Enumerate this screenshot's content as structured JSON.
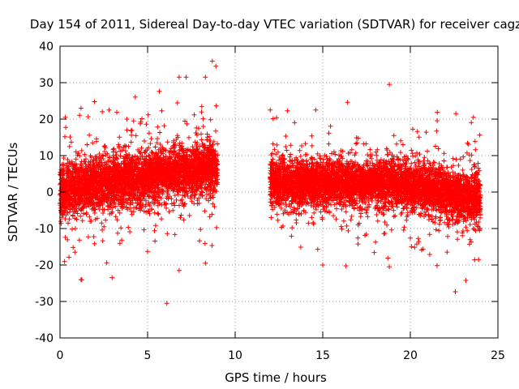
{
  "chart_data": {
    "type": "scatter",
    "title": "Day 154 of 2011, Sidereal Day-to-day VTEC variation (SDTVAR) for receiver cagz",
    "xlabel": "GPS time / hours",
    "ylabel": "SDTVAR / TECUs",
    "xlim": [
      0,
      25
    ],
    "ylim": [
      -40,
      40
    ],
    "xticks": [
      0,
      5,
      10,
      15,
      20,
      25
    ],
    "yticks": [
      -40,
      -30,
      -20,
      -10,
      0,
      10,
      20,
      30,
      40
    ],
    "grid": true,
    "marker": "+",
    "color": "#ff0000",
    "data_gap_hours": [
      9.0,
      12.0
    ],
    "series": [
      {
        "name": "SDTVAR",
        "segments": [
          {
            "x_start": 0.0,
            "x_end": 9.0,
            "mean_start": 0.5,
            "mean_end": 7.0,
            "typical_spread": 3.5
          },
          {
            "x_start": 12.0,
            "x_end": 18.5,
            "mean_start": 2.5,
            "mean_end": 2.5,
            "typical_spread": 3.0
          },
          {
            "x_start": 18.5,
            "x_end": 24.0,
            "mean_start": 3.0,
            "mean_end": -2.0,
            "typical_spread": 3.2
          }
        ],
        "outliers": [
          {
            "x": 1.2,
            "y": 23
          },
          {
            "x": 1.2,
            "y": -24
          },
          {
            "x": 2.8,
            "y": 22.5
          },
          {
            "x": 6.1,
            "y": -30.5
          },
          {
            "x": 6.8,
            "y": -21.5
          },
          {
            "x": 6.8,
            "y": 31.5
          },
          {
            "x": 7.2,
            "y": 31.5
          },
          {
            "x": 8.3,
            "y": 31.5
          },
          {
            "x": 8.9,
            "y": 34.5
          },
          {
            "x": 8.3,
            "y": -19.5
          },
          {
            "x": 12.0,
            "y": 22.5
          },
          {
            "x": 14.6,
            "y": 22.5
          },
          {
            "x": 18.8,
            "y": 29.5
          },
          {
            "x": 18.8,
            "y": -20.5
          },
          {
            "x": 22.6,
            "y": 21.5
          },
          {
            "x": 23.6,
            "y": 20.5
          },
          {
            "x": 23.9,
            "y": -18.5
          },
          {
            "x": 0.3,
            "y": 20.5
          },
          {
            "x": 15.0,
            "y": -20.0
          },
          {
            "x": 4.2,
            "y": 19.5
          }
        ]
      }
    ]
  }
}
